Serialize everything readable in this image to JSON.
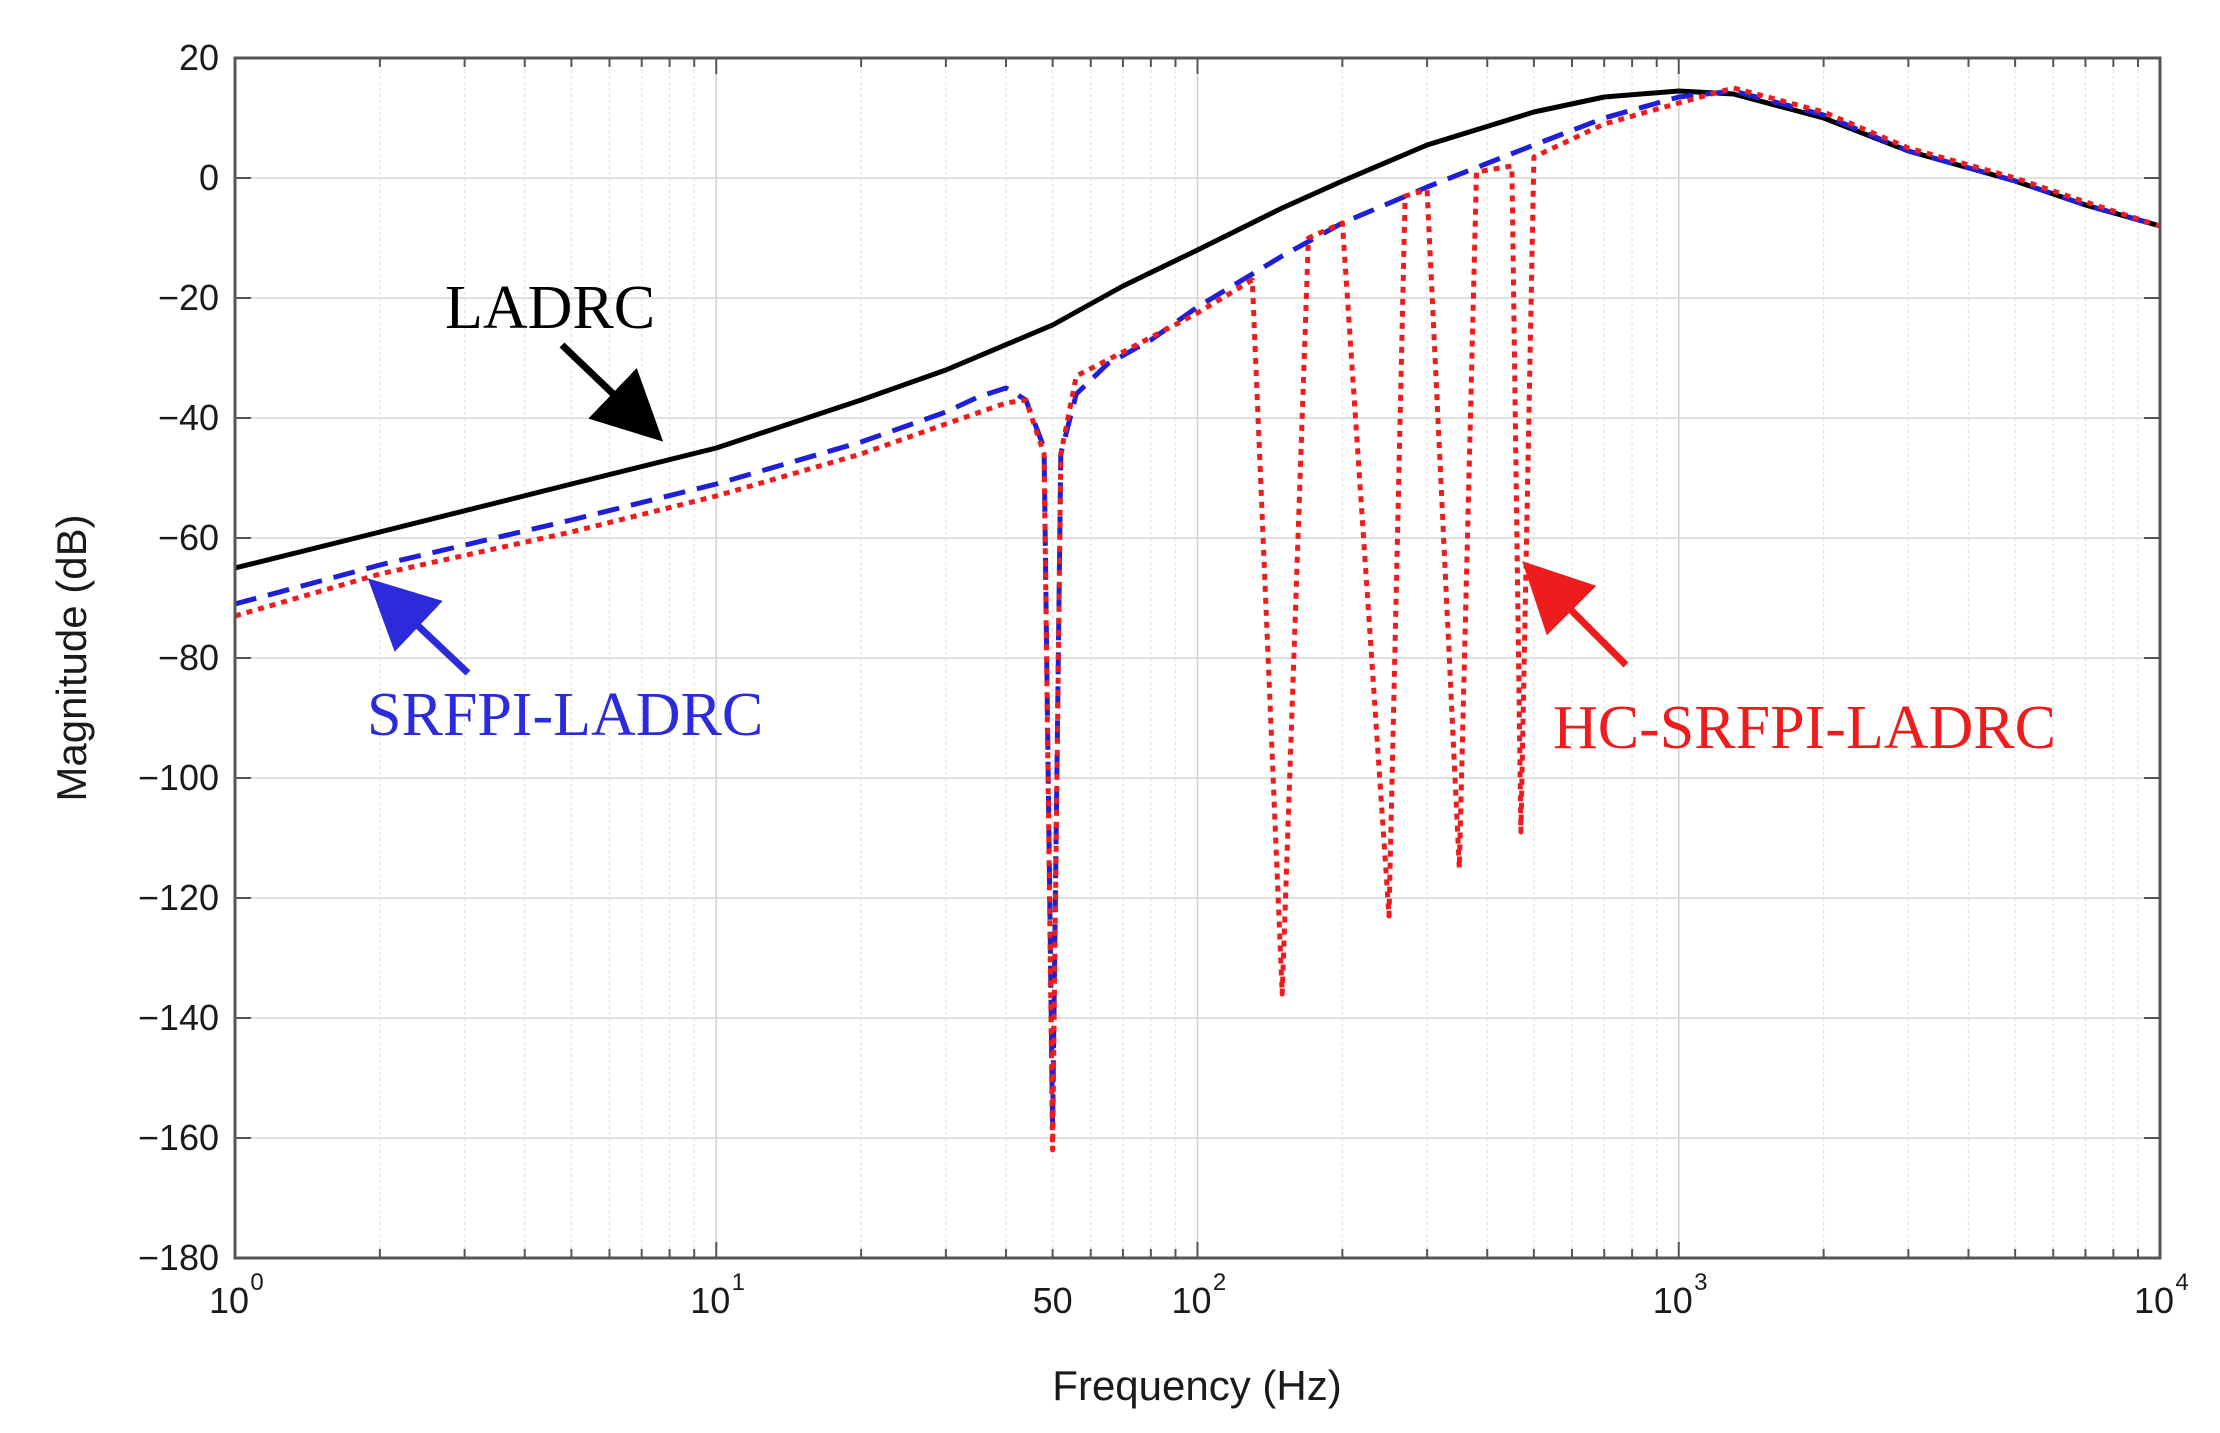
{
  "chart_data": {
    "type": "line",
    "title": "",
    "xlabel": "Frequency  (Hz)",
    "ylabel": "Magnitude (dB)",
    "xscale": "log",
    "xlim": [
      1,
      10000
    ],
    "ylim": [
      -180,
      20
    ],
    "grid": true,
    "x_ticks": [
      {
        "value": 1,
        "base": "10",
        "exp": "0"
      },
      {
        "value": 10,
        "base": "10",
        "exp": "1"
      },
      {
        "value": 50,
        "base": "50",
        "exp": ""
      },
      {
        "value": 100,
        "base": "10",
        "exp": "2"
      },
      {
        "value": 1000,
        "base": "10",
        "exp": "3"
      },
      {
        "value": 10000,
        "base": "10",
        "exp": "4"
      }
    ],
    "y_ticks": [
      {
        "value": 20,
        "label": "20"
      },
      {
        "value": 0,
        "label": "0"
      },
      {
        "value": -20,
        "label": "−20"
      },
      {
        "value": -40,
        "label": "−40"
      },
      {
        "value": -60,
        "label": "−60"
      },
      {
        "value": -80,
        "label": "−80"
      },
      {
        "value": -100,
        "label": "−100"
      },
      {
        "value": -120,
        "label": "−120"
      },
      {
        "value": -140,
        "label": "−140"
      },
      {
        "value": -160,
        "label": "−160"
      },
      {
        "value": -180,
        "label": "−180"
      }
    ],
    "series": [
      {
        "name": "LADRC",
        "color": "#000000",
        "style": "solid",
        "points": [
          [
            1,
            -65
          ],
          [
            2,
            -59
          ],
          [
            5,
            -51
          ],
          [
            10,
            -45
          ],
          [
            20,
            -37
          ],
          [
            30,
            -32
          ],
          [
            50,
            -24.5
          ],
          [
            70,
            -18
          ],
          [
            100,
            -12
          ],
          [
            150,
            -5
          ],
          [
            200,
            -0.5
          ],
          [
            300,
            5.5
          ],
          [
            500,
            11
          ],
          [
            700,
            13.5
          ],
          [
            1000,
            14.5
          ],
          [
            1300,
            14
          ],
          [
            2000,
            10
          ],
          [
            3000,
            4.5
          ],
          [
            5000,
            -0.5
          ],
          [
            7000,
            -4.5
          ],
          [
            10000,
            -8
          ]
        ],
        "notches": []
      },
      {
        "name": "SRFPI-LADRC",
        "color": "#1f1fd6",
        "style": "dashed",
        "points": [
          [
            1,
            -71
          ],
          [
            2,
            -64.5
          ],
          [
            5,
            -57
          ],
          [
            10,
            -51
          ],
          [
            20,
            -44
          ],
          [
            30,
            -39
          ],
          [
            35,
            -36.5
          ],
          [
            40,
            -35
          ],
          [
            44,
            -37
          ],
          [
            48,
            -45
          ],
          [
            50,
            -158
          ],
          [
            52,
            -46
          ],
          [
            56,
            -36
          ],
          [
            65,
            -31
          ],
          [
            80,
            -27
          ],
          [
            100,
            -21.5
          ],
          [
            150,
            -13
          ],
          [
            200,
            -7.5
          ],
          [
            300,
            -1.5
          ],
          [
            500,
            5.5
          ],
          [
            700,
            10
          ],
          [
            1000,
            13.5
          ],
          [
            1300,
            14.5
          ],
          [
            2000,
            10.5
          ],
          [
            3000,
            4.5
          ],
          [
            5000,
            -0.5
          ],
          [
            7000,
            -4.5
          ],
          [
            10000,
            -8
          ]
        ],
        "notches": [
          {
            "freq": 50,
            "depth": -158
          }
        ]
      },
      {
        "name": "HC-SRFPI-LADRC",
        "color": "#ee1c1c",
        "style": "dotted",
        "points": [
          [
            1,
            -73
          ],
          [
            2,
            -66
          ],
          [
            5,
            -59
          ],
          [
            10,
            -53
          ],
          [
            20,
            -46
          ],
          [
            30,
            -41
          ],
          [
            40,
            -37.5
          ],
          [
            44,
            -37
          ],
          [
            48,
            -46
          ],
          [
            50,
            -162
          ],
          [
            52,
            -46
          ],
          [
            56,
            -33
          ],
          [
            70,
            -29
          ],
          [
            100,
            -22.5
          ],
          [
            130,
            -17
          ],
          [
            150,
            -136
          ],
          [
            170,
            -10
          ],
          [
            200,
            -7.5
          ],
          [
            250,
            -123
          ],
          [
            270,
            -3
          ],
          [
            300,
            -2
          ],
          [
            350,
            -115
          ],
          [
            380,
            1
          ],
          [
            450,
            2
          ],
          [
            470,
            -109
          ],
          [
            500,
            3.5
          ],
          [
            700,
            9
          ],
          [
            1000,
            12.5
          ],
          [
            1300,
            15
          ],
          [
            2000,
            11
          ],
          [
            3000,
            5
          ],
          [
            5000,
            0
          ],
          [
            7000,
            -4
          ],
          [
            10000,
            -8
          ]
        ],
        "notches": [
          {
            "freq": 50,
            "depth": -162
          },
          {
            "freq": 150,
            "depth": -136
          },
          {
            "freq": 250,
            "depth": -123
          },
          {
            "freq": 350,
            "depth": -115
          },
          {
            "freq": 470,
            "depth": -109
          }
        ]
      }
    ],
    "annotations": [
      {
        "text": "LADRC",
        "color": "#000000"
      },
      {
        "text": "SRFPI-LADRC",
        "color": "#2b2bdc"
      },
      {
        "text": "HC-SRFPI-LADRC",
        "color": "#ee1c1c"
      }
    ]
  }
}
